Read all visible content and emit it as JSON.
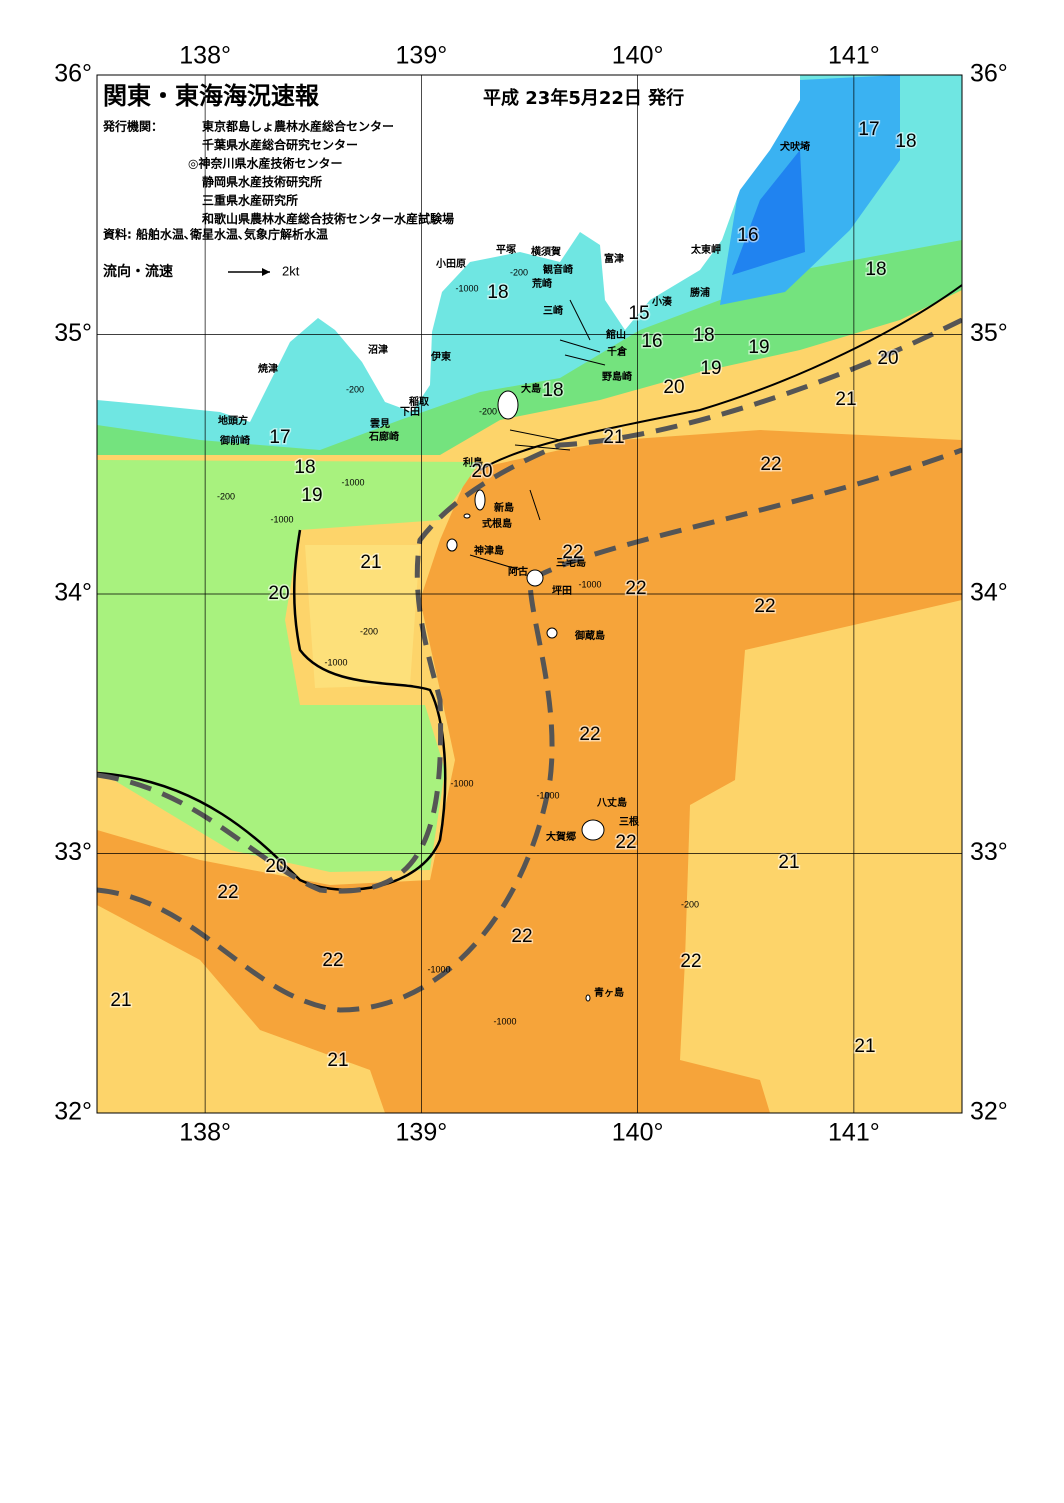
{
  "header": {
    "title": "関東・東海海況速報",
    "date": "平成 23年5月22日 発行",
    "issuer_label": "発行機関：",
    "issuers": [
      "東京都島しょ農林水産総合センター",
      "千葉県水産総合研究センター",
      "◎神奈川県水産技術センター",
      "静岡県水産技術研究所",
      "三重県水産研究所",
      "和歌山県農林水産総合技術センター水産試験場"
    ],
    "source": "資料: 船舶水温､衛星水温､気象庁解析水温",
    "legend": "流向・流速",
    "legend_scale": "2kt"
  },
  "axes": {
    "lon_ticks": [
      {
        "value": 138,
        "label": "138°"
      },
      {
        "value": 139,
        "label": "139°"
      },
      {
        "value": 140,
        "label": "140°"
      },
      {
        "value": 141,
        "label": "141°"
      }
    ],
    "lat_ticks": [
      {
        "value": 32,
        "label": "32°"
      },
      {
        "value": 33,
        "label": "33°"
      },
      {
        "value": 34,
        "label": "34°"
      },
      {
        "value": 35,
        "label": "35°"
      },
      {
        "value": 36,
        "label": "36°"
      }
    ],
    "lon_range": [
      137.5,
      141.5
    ],
    "lat_range": [
      32,
      36
    ]
  },
  "places": [
    "犬吠埼",
    "太東岬",
    "勝浦",
    "小湊",
    "館山",
    "千倉",
    "野島崎",
    "富津",
    "横須賀",
    "観音崎",
    "荒崎",
    "三崎",
    "平塚",
    "小田原",
    "沼津",
    "伊東",
    "焼津",
    "稲取",
    "下田",
    "雲見",
    "石廊崎",
    "地頭方",
    "御前崎",
    "大島",
    "利島",
    "新島",
    "式根島",
    "神津島",
    "三宅島",
    "阿古",
    "坪田",
    "御蔵島",
    "八丈島",
    "三根",
    "大賀郷",
    "青ヶ島"
  ],
  "isotherm_labels": [
    17,
    18,
    16,
    18,
    15,
    16,
    18,
    19,
    19,
    20,
    18,
    18,
    20,
    21,
    21,
    22,
    20,
    17,
    18,
    19,
    21,
    22,
    22,
    22,
    20,
    22,
    22,
    21,
    20,
    22,
    22,
    22,
    22,
    21,
    21,
    21
  ],
  "depth_labels": [
    -200,
    -1000,
    -200,
    -1000,
    -200,
    -200,
    -1000,
    -200,
    -1000,
    -1000,
    -1000,
    -200,
    -1000,
    -1000,
    -1000
  ]
}
